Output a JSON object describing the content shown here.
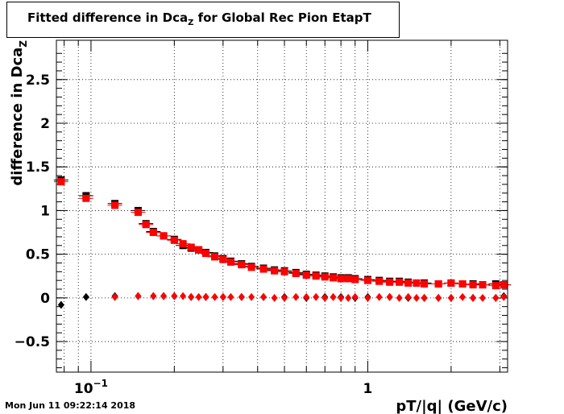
{
  "title": {
    "prefix": "Fitted difference in Dca",
    "sub": "Z",
    "suffix": " for Global Rec Pion EtapT"
  },
  "timestamp": "Mon Jun 11 09:22:14 2018",
  "chart_data": {
    "type": "scatter",
    "xlabel": "pT/|q| (GeV/c)",
    "ylabel_prefix": "difference in Dca",
    "ylabel_sub": "Z",
    "x_scale": "log",
    "xlim": [
      0.075,
      3.2
    ],
    "ylim": [
      -0.85,
      2.95
    ],
    "grid": true,
    "x_ticks": [
      {
        "value": 0.1,
        "base": "10",
        "exp": "−1"
      },
      {
        "value": 1,
        "label": "1"
      }
    ],
    "y_ticks": [
      {
        "value": -0.5,
        "label": "−0.5"
      },
      {
        "value": 0,
        "label": "0"
      },
      {
        "value": 0.5,
        "label": "0.5"
      },
      {
        "value": 1,
        "label": "1"
      },
      {
        "value": 1.5,
        "label": "1.5"
      },
      {
        "value": 2,
        "label": "2"
      },
      {
        "value": 2.5,
        "label": "2.5"
      }
    ],
    "series": [
      {
        "marker": "square",
        "color": "#000000",
        "x": [
          0.078,
          0.096,
          0.122,
          0.148,
          0.158,
          0.168,
          0.183,
          0.2,
          0.215,
          0.23,
          0.245,
          0.26,
          0.28,
          0.3,
          0.32,
          0.35,
          0.38,
          0.42,
          0.46,
          0.5,
          0.55,
          0.6,
          0.65,
          0.7,
          0.75,
          0.8,
          0.85,
          0.9,
          1.0,
          1.1,
          1.2,
          1.3,
          1.4,
          1.5,
          1.6,
          1.8,
          2.0,
          2.2,
          2.4,
          2.6,
          2.9,
          3.1
        ],
        "y": [
          1.35,
          1.17,
          1.08,
          1.0,
          0.85,
          0.76,
          0.71,
          0.67,
          0.6,
          0.57,
          0.55,
          0.52,
          0.48,
          0.45,
          0.42,
          0.39,
          0.36,
          0.34,
          0.32,
          0.31,
          0.29,
          0.27,
          0.26,
          0.25,
          0.24,
          0.23,
          0.23,
          0.22,
          0.21,
          0.2,
          0.19,
          0.19,
          0.18,
          0.17,
          0.17,
          0.16,
          0.17,
          0.16,
          0.16,
          0.15,
          0.16,
          0.15
        ]
      },
      {
        "marker": "square",
        "color": "#ff0000",
        "x": [
          0.078,
          0.096,
          0.122,
          0.148,
          0.158,
          0.168,
          0.183,
          0.2,
          0.215,
          0.23,
          0.245,
          0.26,
          0.28,
          0.3,
          0.32,
          0.35,
          0.38,
          0.42,
          0.46,
          0.5,
          0.55,
          0.6,
          0.65,
          0.7,
          0.75,
          0.8,
          0.85,
          0.9,
          1.0,
          1.1,
          1.2,
          1.3,
          1.4,
          1.5,
          1.6,
          1.8,
          2.0,
          2.2,
          2.4,
          2.6,
          2.9,
          3.1
        ],
        "y": [
          1.33,
          1.14,
          1.06,
          0.98,
          0.84,
          0.75,
          0.71,
          0.66,
          0.62,
          0.58,
          0.55,
          0.51,
          0.47,
          0.44,
          0.41,
          0.38,
          0.35,
          0.33,
          0.31,
          0.3,
          0.28,
          0.26,
          0.25,
          0.24,
          0.23,
          0.22,
          0.22,
          0.21,
          0.2,
          0.19,
          0.18,
          0.18,
          0.17,
          0.17,
          0.16,
          0.16,
          0.17,
          0.16,
          0.15,
          0.15,
          0.14,
          0.15
        ]
      },
      {
        "marker": "diamond",
        "color": "#000000",
        "x": [
          0.078,
          0.096,
          0.122,
          0.148,
          0.168,
          0.183,
          0.2,
          0.23,
          0.26,
          0.3,
          0.35,
          0.42,
          0.5,
          0.6,
          0.7,
          0.8,
          0.9,
          1.0,
          1.2,
          1.4,
          1.6,
          1.8,
          2.0,
          2.4,
          2.9,
          3.1
        ],
        "y": [
          -0.08,
          0.01,
          0.02,
          0.02,
          0.02,
          0.02,
          0.02,
          0.01,
          0.01,
          0.01,
          0.01,
          0.01,
          0.01,
          0.0,
          0.01,
          0.01,
          0.0,
          0.01,
          0.01,
          0.0,
          0.0,
          0.0,
          0.0,
          0.0,
          0.0,
          0.02
        ]
      },
      {
        "marker": "diamond",
        "color": "#ff0000",
        "x": [
          0.122,
          0.148,
          0.168,
          0.183,
          0.2,
          0.215,
          0.23,
          0.245,
          0.26,
          0.28,
          0.3,
          0.32,
          0.35,
          0.38,
          0.42,
          0.46,
          0.5,
          0.55,
          0.6,
          0.65,
          0.7,
          0.75,
          0.8,
          0.85,
          0.9,
          1.0,
          1.1,
          1.2,
          1.3,
          1.4,
          1.5,
          1.6,
          1.8,
          2.0,
          2.2,
          2.4,
          2.6,
          2.9,
          3.1
        ],
        "y": [
          0.01,
          0.02,
          0.02,
          0.02,
          0.02,
          0.02,
          0.01,
          0.01,
          0.01,
          0.01,
          0.01,
          0.01,
          0.01,
          0.01,
          0.01,
          0.0,
          0.0,
          0.01,
          0.01,
          0.01,
          0.0,
          0.01,
          0.0,
          0.0,
          0.01,
          0.0,
          0.01,
          0.01,
          0.0,
          0.01,
          0.0,
          0.0,
          0.0,
          0.0,
          0.01,
          0.0,
          0.0,
          0.0,
          0.01
        ]
      }
    ]
  }
}
